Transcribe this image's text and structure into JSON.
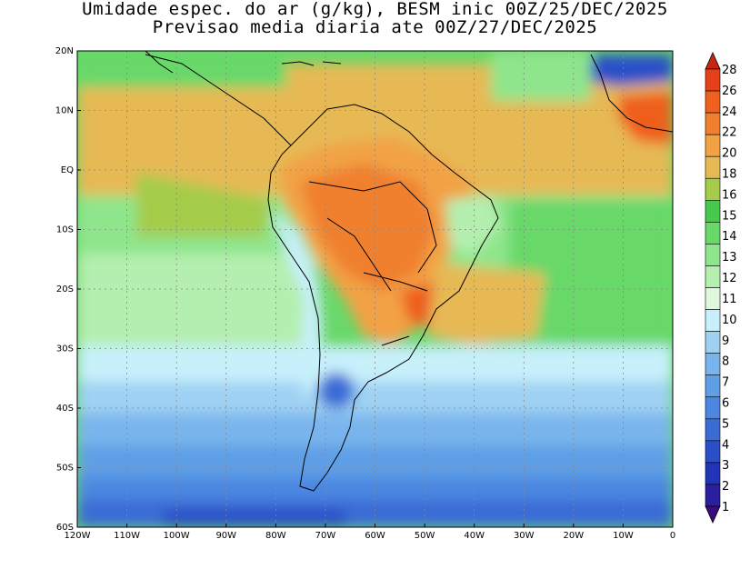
{
  "title": {
    "line1": "Umidade espec. do ar (g/kg), BESM inic 00Z/25/DEC/2025",
    "line2": "Previsao media diaria ate 00Z/27/DEC/2025"
  },
  "axes": {
    "x_ticks": [
      "120W",
      "110W",
      "100W",
      "90W",
      "80W",
      "70W",
      "60W",
      "50W",
      "40W",
      "30W",
      "20W",
      "10W",
      "0"
    ],
    "y_ticks": [
      "20N",
      "10N",
      "EQ",
      "10S",
      "20S",
      "30S",
      "40S",
      "50S",
      "60S"
    ],
    "lon_range": [
      -120,
      0
    ],
    "lat_range": [
      -60,
      20
    ],
    "grid": "dotted"
  },
  "colorbar": {
    "levels": [
      "1",
      "2",
      "3",
      "4",
      "5",
      "6",
      "7",
      "8",
      "9",
      "10",
      "11",
      "12",
      "13",
      "14",
      "15",
      "16",
      "18",
      "20",
      "22",
      "24",
      "26",
      "28"
    ],
    "colors": [
      "#3a0d7a",
      "#2b1f9e",
      "#2333b8",
      "#2a4fc8",
      "#3a6cd6",
      "#4c87e0",
      "#5f9fe6",
      "#79b5ec",
      "#9fd1f3",
      "#c7f0fb",
      "#dff8dc",
      "#b4efb0",
      "#8fe58c",
      "#68d869",
      "#46c94c",
      "#a4cc4a",
      "#e6b954",
      "#f2a244",
      "#f07f2e",
      "#ef5f1d",
      "#e6401a",
      "#c82614"
    ]
  },
  "map": {
    "variable": "specific humidity",
    "units": "g/kg"
  }
}
